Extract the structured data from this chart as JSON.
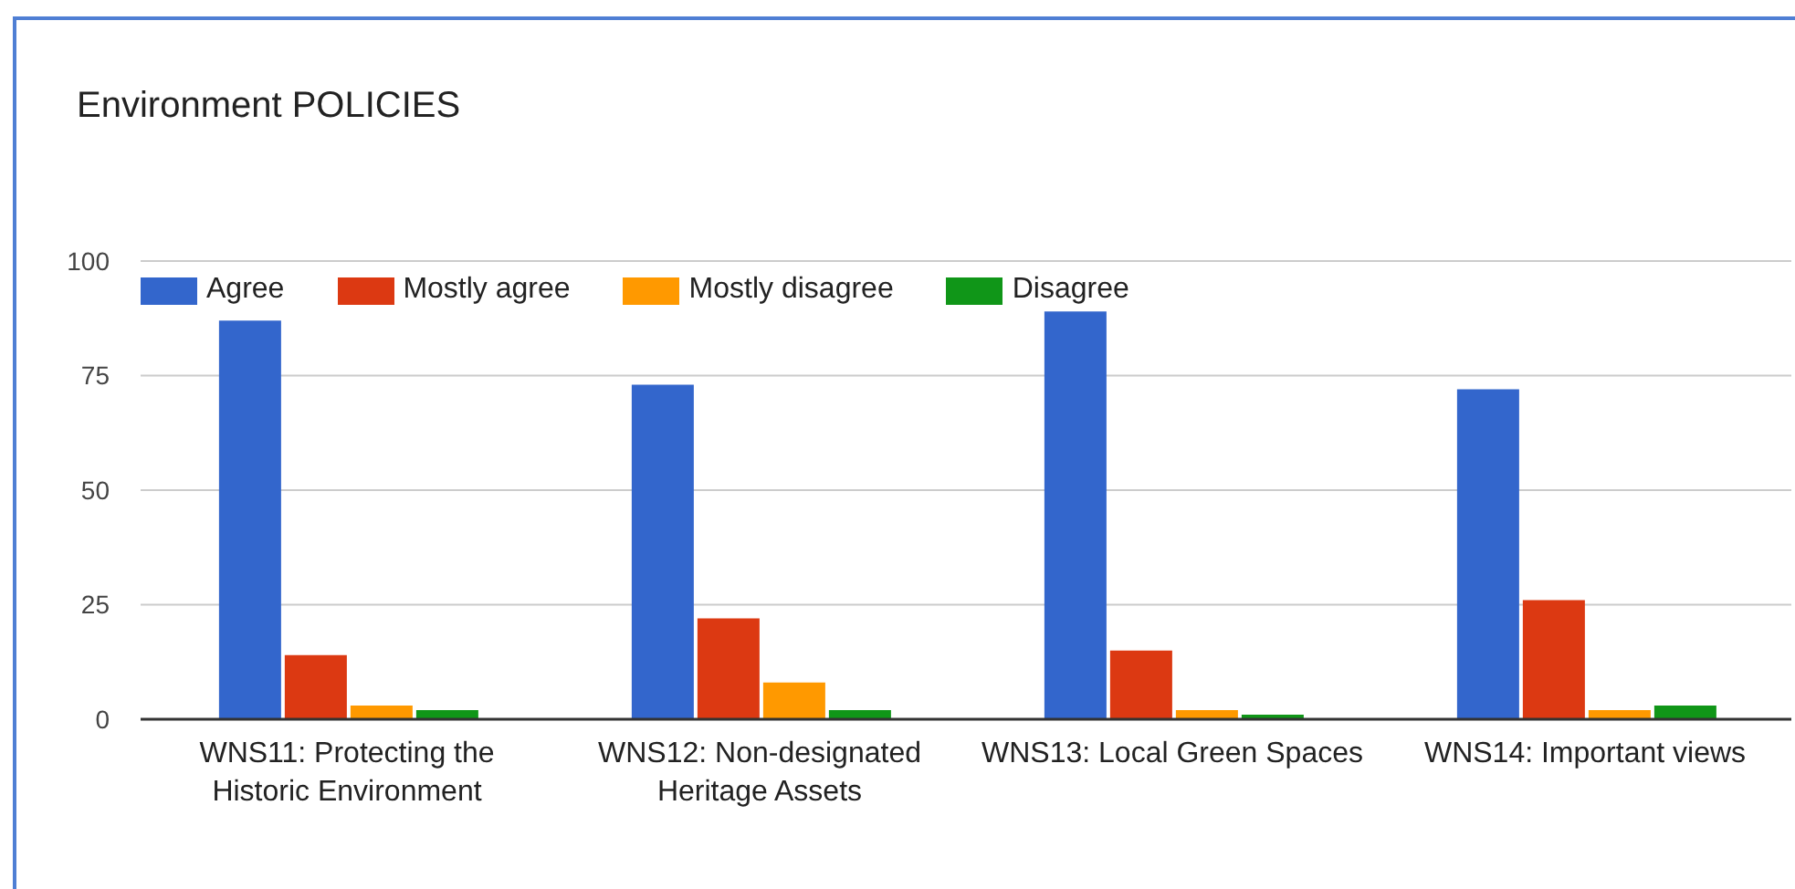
{
  "chart_data": {
    "type": "bar",
    "title": "Environment POLICIES",
    "categories": [
      "WNS11: Protecting the Historic Environment",
      "WNS12: Non-designated Heritage Assets",
      "WNS13: Local Green Spaces",
      "WNS14: Important views"
    ],
    "series": [
      {
        "name": "Agree",
        "color": "#3366cc",
        "values": [
          87,
          73,
          89,
          72
        ]
      },
      {
        "name": "Mostly agree",
        "color": "#dc3912",
        "values": [
          14,
          22,
          15,
          26
        ]
      },
      {
        "name": "Mostly disagree",
        "color": "#ff9900",
        "values": [
          3,
          8,
          2,
          2
        ]
      },
      {
        "name": "Disagree",
        "color": "#109618",
        "values": [
          2,
          2,
          1,
          3
        ]
      }
    ],
    "ylim": [
      0,
      100
    ],
    "yticks": [
      0,
      25,
      50,
      75,
      100
    ],
    "grid": "y",
    "legend": "top left"
  }
}
